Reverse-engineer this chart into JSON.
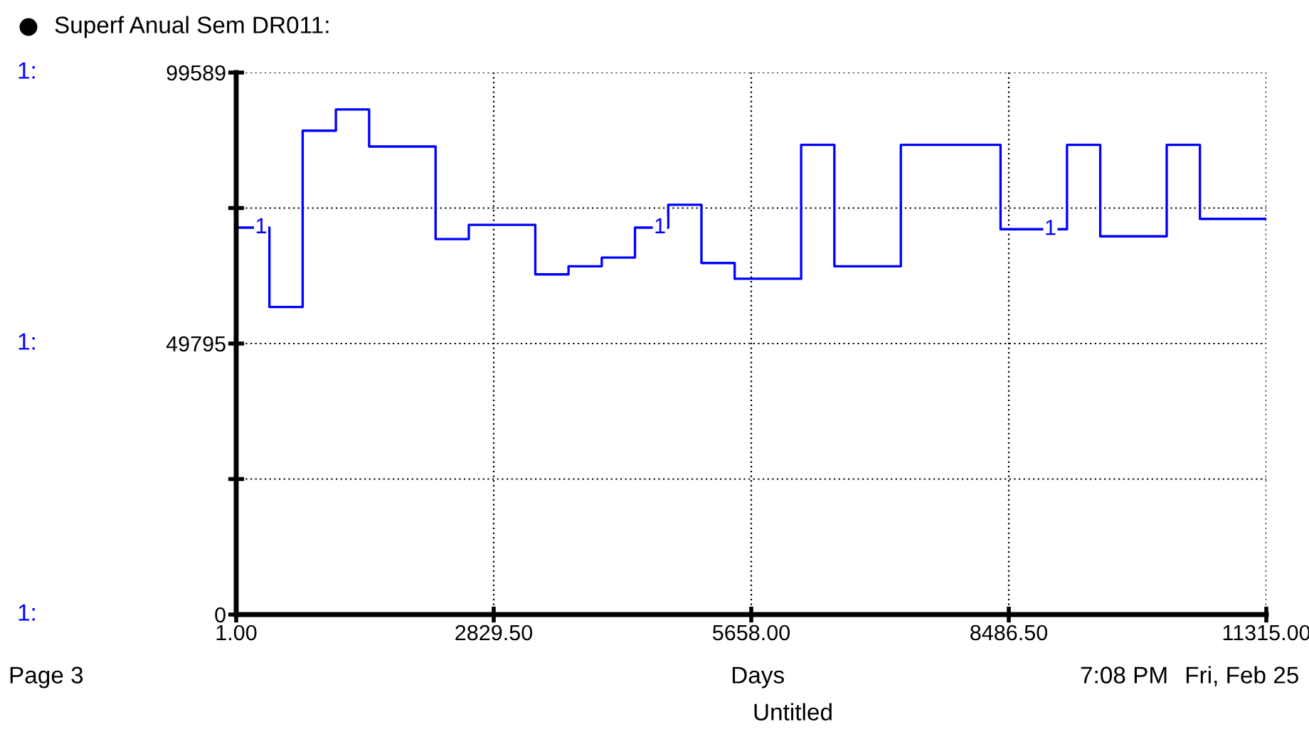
{
  "chart_data": {
    "type": "step",
    "title": "Superf Anual Sem DR011:",
    "xlabel": "Days",
    "x": [
      1,
      366,
      731,
      1096,
      1461,
      2191,
      2556,
      3286,
      3651,
      4016,
      4381,
      4746,
      5111,
      5476,
      6206,
      6571,
      7301,
      8396,
      9126,
      9491,
      10221,
      10586,
      11315
    ],
    "series": [
      {
        "name": "1",
        "color": "#0000ff",
        "values": [
          71100,
          56500,
          88900,
          92800,
          86000,
          69000,
          71600,
          62500,
          64000,
          65600,
          71100,
          75300,
          64600,
          61700,
          86300,
          64000,
          86300,
          70800,
          86300,
          69500,
          86300,
          72700,
          72700
        ]
      }
    ],
    "xlim": [
      1,
      11315
    ],
    "xticks": [
      {
        "value": 1,
        "label": "1.00"
      },
      {
        "value": 2829.5,
        "label": "2829.50"
      },
      {
        "value": 5658,
        "label": "5658.00"
      },
      {
        "value": 8486.5,
        "label": "8486.50"
      },
      {
        "value": 11315,
        "label": "11315.00"
      }
    ],
    "ylim": [
      0,
      99589
    ],
    "yticks": [
      0,
      {
        "value": 24897,
        "label": null
      },
      49795,
      {
        "value": 74692,
        "label": null
      },
      99589
    ],
    "grid": true,
    "legend": false,
    "annotations": [
      "1:",
      "1:",
      "1:",
      "Page 3",
      "Untitled",
      "7:08 PM",
      "Fri, Feb 25"
    ]
  }
}
